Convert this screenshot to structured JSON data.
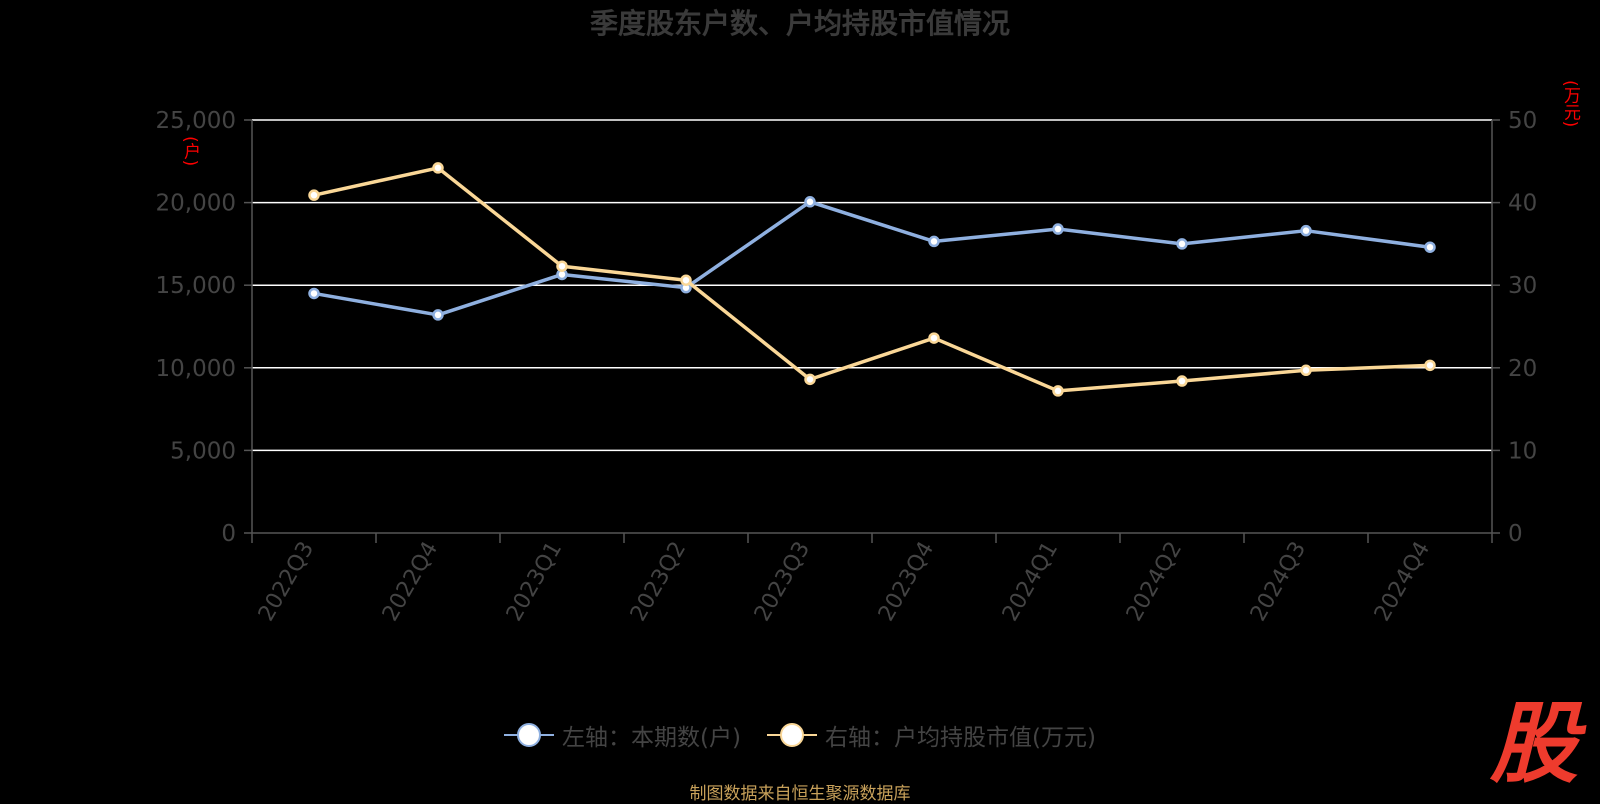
{
  "title": "季度股东户数、户均持股市值情况",
  "left_unit": "(户)",
  "right_unit": "(万元)",
  "legend": [
    {
      "label": "左轴：本期数(户)",
      "color": "#8fb0e0"
    },
    {
      "label": "右轴：户均持股市值(万元)",
      "color": "#fad797"
    }
  ],
  "source": "制图数据来自恒生聚源数据库",
  "stamp_text": "股",
  "chart_data": {
    "type": "line",
    "categories": [
      "2022Q3",
      "2022Q4",
      "2023Q1",
      "2023Q2",
      "2023Q3",
      "2023Q4",
      "2024Q1",
      "2024Q2",
      "2024Q3",
      "2024Q4"
    ],
    "y_left": {
      "range": [
        0,
        25000
      ],
      "ticks": [
        "0",
        "5,000",
        "10,000",
        "15,000",
        "20,000",
        "25,000"
      ]
    },
    "y_right": {
      "range": [
        0,
        50
      ],
      "ticks": [
        "0",
        "10",
        "20",
        "30",
        "40",
        "50"
      ]
    },
    "series": [
      {
        "name": "左轴：本期数(户)",
        "axis": "left",
        "color": "#8fb0e0",
        "values": [
          14500,
          13200,
          15650,
          14850,
          20050,
          17650,
          18400,
          17500,
          18300,
          17300
        ]
      },
      {
        "name": "右轴：户均持股市值(万元)",
        "axis": "right",
        "color": "#fad797",
        "values": [
          40.9,
          44.2,
          32.3,
          30.6,
          18.6,
          23.6,
          17.2,
          18.4,
          19.7,
          20.3
        ]
      }
    ],
    "grid": true,
    "legend_position": "bottom"
  }
}
